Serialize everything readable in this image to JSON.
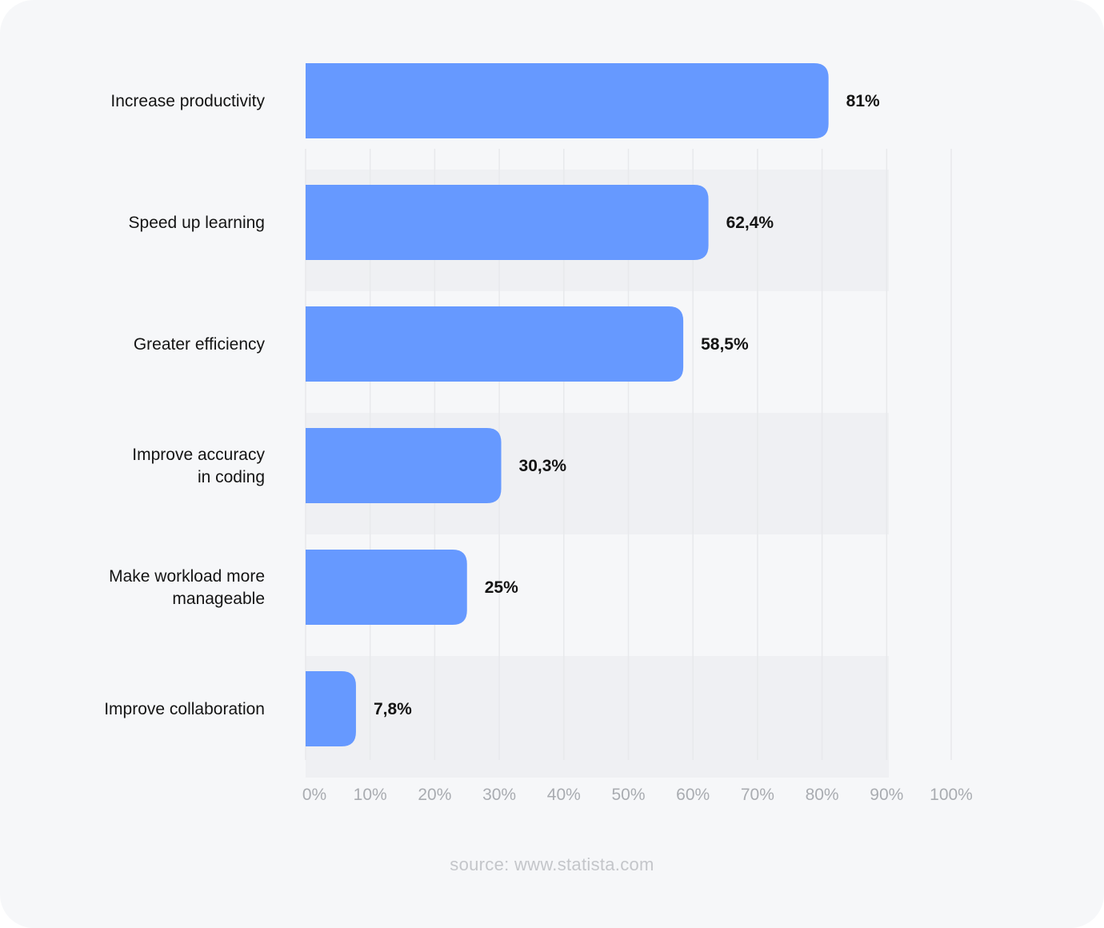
{
  "chart_data": {
    "type": "bar",
    "orientation": "horizontal",
    "categories": [
      [
        "Increase productivity"
      ],
      [
        "Speed up learning"
      ],
      [
        "Greater efficiency"
      ],
      [
        "Improve accuracy",
        "in coding"
      ],
      [
        "Make workload more",
        "manageable"
      ],
      [
        "Improve collaboration"
      ]
    ],
    "values": [
      81,
      62.4,
      58.5,
      30.3,
      25,
      7.8
    ],
    "value_labels": [
      "81%",
      "62,4%",
      "58,5%",
      "30,3%",
      "25%",
      "7,8%"
    ],
    "xlim": [
      0,
      100
    ],
    "ticks": [
      0,
      10,
      20,
      30,
      40,
      50,
      60,
      70,
      80,
      90,
      100
    ],
    "tick_labels": [
      "0%",
      "10%",
      "20%",
      "30%",
      "40%",
      "50%",
      "60%",
      "70%",
      "80%",
      "90%",
      "100%"
    ],
    "grid": true,
    "bar_color": "#6699ff",
    "band_color": "#eff0f3"
  },
  "source": "source: www.statista.com"
}
